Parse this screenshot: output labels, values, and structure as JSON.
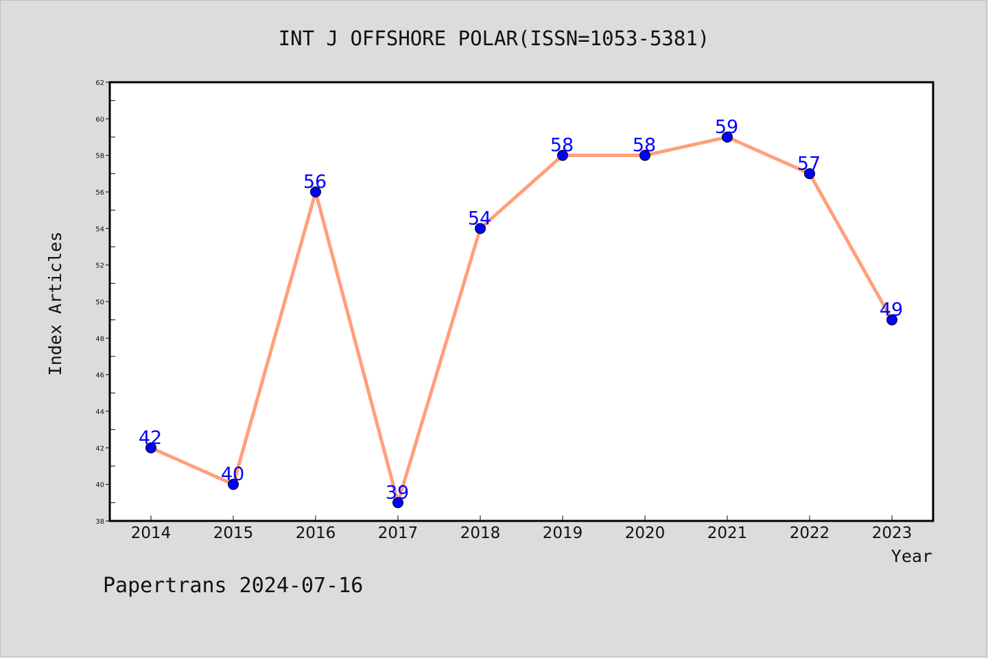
{
  "chart_data": {
    "type": "line",
    "title": "INT J OFFSHORE POLAR(ISSN=1053-5381)",
    "xlabel": "Year",
    "ylabel": "Index Articles",
    "categories": [
      "2014",
      "2015",
      "2016",
      "2017",
      "2018",
      "2019",
      "2020",
      "2021",
      "2022",
      "2023"
    ],
    "series": [
      {
        "values": [
          42,
          40,
          56,
          39,
          54,
          58,
          58,
          59,
          57,
          49
        ],
        "line_color": "#ffa07a",
        "marker_color": "#0000ff",
        "label_color": "#0000ff"
      }
    ],
    "data_labels": [
      "42",
      "40",
      "56",
      "39",
      "54",
      "58",
      "58",
      "59",
      "57",
      "49"
    ],
    "ylim": [
      38,
      62
    ],
    "yticks": [
      "38",
      "40",
      "42",
      "44",
      "46",
      "48",
      "50",
      "52",
      "54",
      "56",
      "58",
      "60",
      "62"
    ],
    "grid": false,
    "legend": "none"
  },
  "footer": {
    "text": "Papertrans 2024-07-16"
  },
  "colors": {
    "background": "#dcdcdc",
    "plot_background": "#ffffff",
    "axis": "#000000"
  }
}
